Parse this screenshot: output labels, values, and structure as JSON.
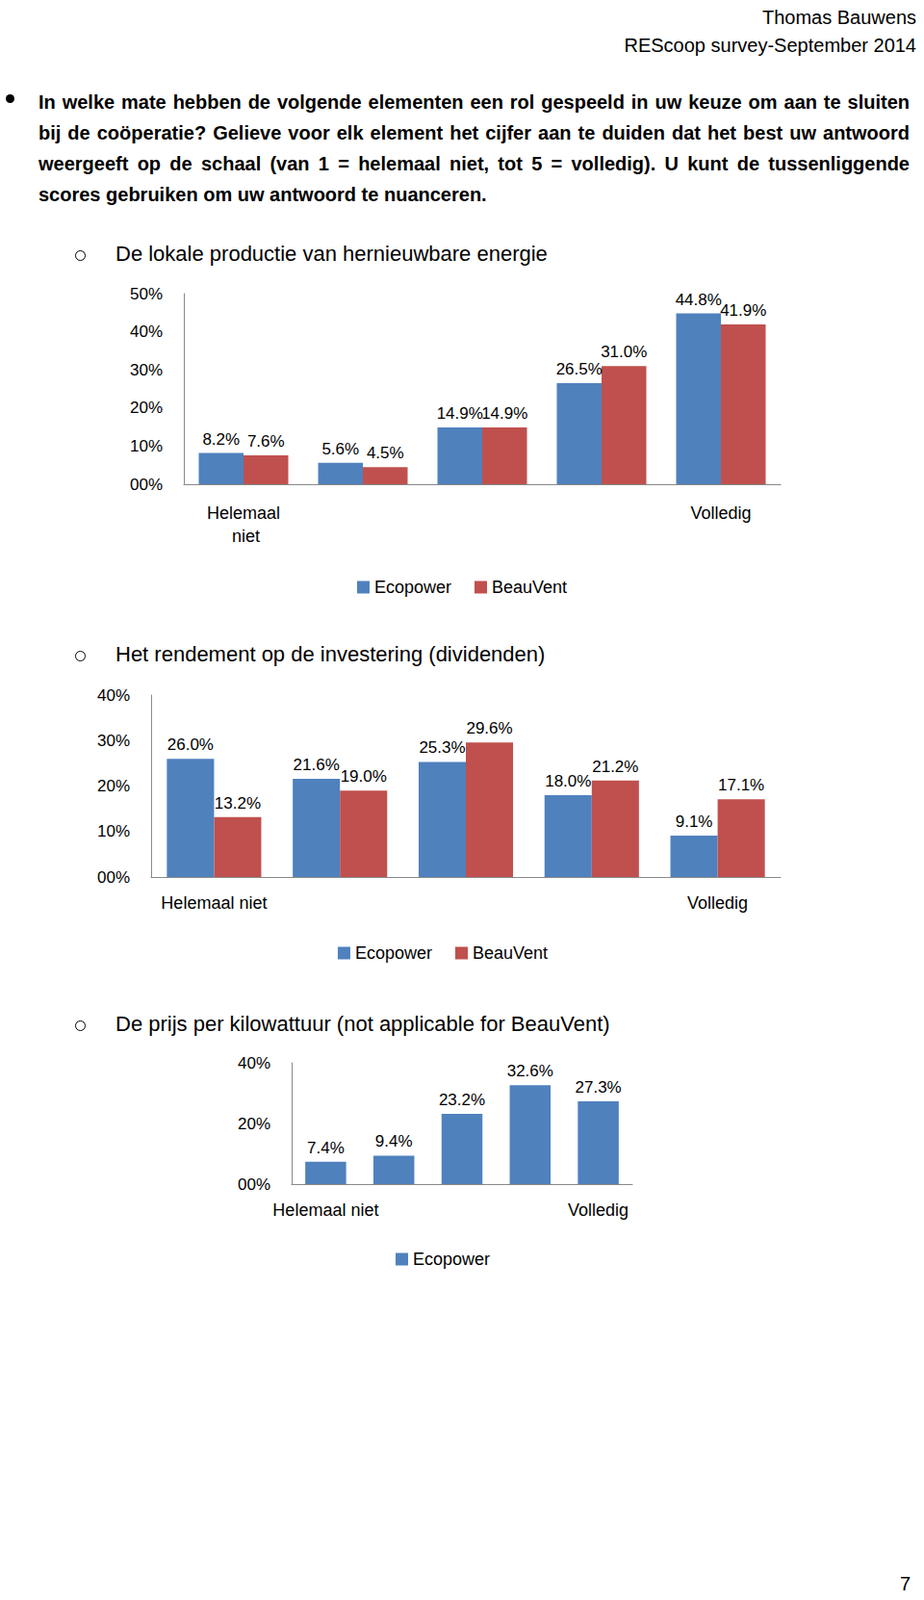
{
  "header": {
    "author": "Thomas Bauwens",
    "survey": "REScoop survey-September 2014"
  },
  "question": "In welke mate hebben de volgende elementen een rol gespeeld in uw keuze om aan te sluiten bij de coöperatie? Gelieve voor elk element het cijfer aan te duiden dat het best uw antwoord weergeeft op de schaal (van 1 = helemaal niet, tot 5 = volledig). U kunt de tussenliggende scores gebruiken om uw antwoord te nuanceren.",
  "chart_data": [
    {
      "type": "bar",
      "title": "De lokale productie van hernieuwbare energie",
      "categories": [
        "Helemaal niet",
        null,
        null,
        null,
        "Volledig"
      ],
      "series": [
        {
          "name": "Ecopower",
          "color": "#4f81bd",
          "values": [
            8.2,
            5.6,
            14.9,
            26.5,
            44.8
          ],
          "value_labels": [
            "8.2%",
            "5.6%",
            "14.9%",
            "26.5%",
            "44.8%"
          ]
        },
        {
          "name": "BeauVent",
          "color": "#c0504d",
          "values": [
            7.6,
            4.5,
            14.9,
            31.0,
            41.9
          ],
          "value_labels": [
            "7.6%",
            "4.5%",
            "14.9%",
            "31.0%",
            "41.9%"
          ]
        }
      ],
      "ylim": [
        0,
        50
      ],
      "yticks": [
        {
          "value": 0,
          "label": "00%"
        },
        {
          "value": 10,
          "label": "10%"
        },
        {
          "value": 20,
          "label": "20%"
        },
        {
          "value": 30,
          "label": "30%"
        },
        {
          "value": 40,
          "label": "40%"
        },
        {
          "value": 50,
          "label": "50%"
        }
      ],
      "grid": false,
      "legend": "bottom",
      "data_labels": true
    },
    {
      "type": "bar",
      "title": "Het rendement op de investering (dividenden)",
      "categories": [
        "Helemaal niet",
        null,
        null,
        null,
        "Volledig"
      ],
      "series": [
        {
          "name": "Ecopower",
          "color": "#4f81bd",
          "values": [
            26.0,
            21.6,
            25.3,
            18.0,
            9.1
          ],
          "value_labels": [
            "26.0%",
            "21.6%",
            "25.3%",
            "18.0%",
            "9.1%"
          ]
        },
        {
          "name": "BeauVent",
          "color": "#c0504d",
          "values": [
            13.2,
            19.0,
            29.6,
            21.2,
            17.1
          ],
          "value_labels": [
            "13.2%",
            "19.0%",
            "29.6%",
            "21.2%",
            "17.1%"
          ]
        }
      ],
      "ylim": [
        0,
        40
      ],
      "yticks": [
        {
          "value": 0,
          "label": "00%"
        },
        {
          "value": 10,
          "label": "10%"
        },
        {
          "value": 20,
          "label": "20%"
        },
        {
          "value": 30,
          "label": "30%"
        },
        {
          "value": 40,
          "label": "40%"
        }
      ],
      "grid": false,
      "legend": "bottom",
      "data_labels": true
    },
    {
      "type": "bar",
      "title": "De prijs per kilowattuur (not applicable for BeauVent)",
      "categories": [
        "Helemaal niet",
        null,
        null,
        null,
        "Volledig"
      ],
      "series": [
        {
          "name": "Ecopower",
          "color": "#4f81bd",
          "values": [
            7.4,
            9.4,
            23.2,
            32.6,
            27.3
          ],
          "value_labels": [
            "7.4%",
            "9.4%",
            "23.2%",
            "32.6%",
            "27.3%"
          ]
        }
      ],
      "ylim": [
        0,
        40
      ],
      "yticks": [
        {
          "value": 0,
          "label": "00%"
        },
        {
          "value": 20,
          "label": "20%"
        },
        {
          "value": 40,
          "label": "40%"
        }
      ],
      "grid": false,
      "legend": "bottom",
      "data_labels": true
    }
  ],
  "page_number": 7
}
